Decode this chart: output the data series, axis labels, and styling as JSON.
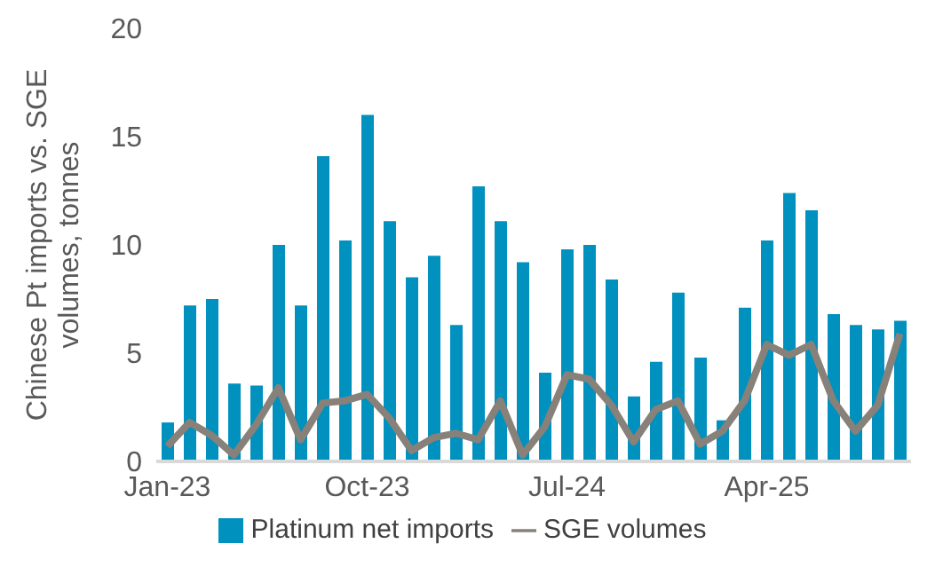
{
  "chart_data": {
    "type": "bar",
    "ylabel": "Chinese Pt imports vs. SGE volumes, tonnes",
    "categories": [
      "Jan-23",
      null,
      null,
      null,
      null,
      null,
      null,
      null,
      null,
      "Oct-23",
      null,
      null,
      null,
      null,
      null,
      null,
      null,
      null,
      "Jul-24",
      null,
      null,
      null,
      null,
      null,
      null,
      null,
      null,
      "Apr-25",
      null,
      null,
      null,
      null,
      null,
      null
    ],
    "series": [
      {
        "name": "Platinum net imports",
        "color": "#0091bf",
        "values": [
          1.8,
          7.2,
          7.5,
          3.6,
          3.5,
          10.0,
          7.2,
          14.1,
          10.2,
          16.0,
          11.1,
          8.5,
          9.5,
          6.3,
          12.7,
          11.1,
          9.2,
          4.1,
          9.8,
          10.0,
          8.4,
          3.0,
          4.6,
          7.8,
          4.8,
          1.9,
          7.1,
          10.2,
          12.4,
          11.6,
          6.8,
          6.3,
          6.1,
          6.5
        ]
      },
      {
        "name": "SGE volumes",
        "type": "line",
        "color": "#878179",
        "values": [
          0.7,
          1.8,
          1.2,
          0.3,
          1.7,
          3.4,
          1.0,
          2.7,
          2.8,
          3.1,
          2.0,
          0.5,
          1.1,
          1.3,
          1.0,
          2.8,
          0.3,
          1.6,
          4.0,
          3.8,
          2.6,
          0.9,
          2.4,
          2.8,
          0.8,
          1.4,
          2.8,
          5.4,
          4.9,
          5.4,
          2.8,
          1.4,
          2.6,
          5.9
        ]
      }
    ],
    "ylim": [
      0,
      20
    ],
    "yticks": [
      0,
      5,
      10,
      15,
      20
    ],
    "grid": false,
    "legend": "bottom",
    "marker": "none",
    "line_style": "solid"
  }
}
